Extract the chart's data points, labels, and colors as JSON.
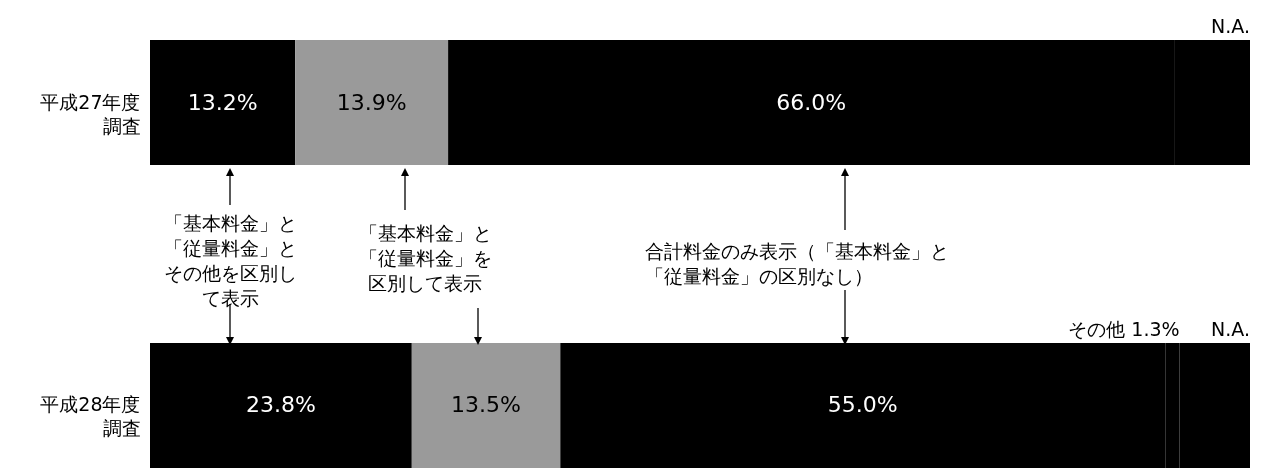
{
  "chart_data": {
    "type": "bar",
    "orientation": "horizontal",
    "stacked": true,
    "categories": [
      "平成27年度調査",
      "平成28年度調査"
    ],
    "xlim": [
      0,
      100
    ],
    "tick_labels": "y",
    "series": [
      {
        "color": "#000000",
        "values": [
          13.2,
          23.8
        ],
        "value_labels": [
          "13.2%",
          "23.8%"
        ]
      },
      {
        "color": "#9a9a9a",
        "values": [
          13.9,
          13.5
        ],
        "value_labels": [
          "13.9%",
          "13.5%"
        ]
      },
      {
        "color": "#000000",
        "values": [
          66.0,
          55.0
        ],
        "value_labels": [
          "66.0%",
          "55.0%"
        ]
      },
      {
        "name": "その他",
        "color": "#000000",
        "values": [
          null,
          1.3
        ],
        "value_labels": [
          null,
          "1.3%"
        ]
      },
      {
        "name": "N.A.",
        "color": "#000000",
        "values": [
          6.9,
          6.4
        ]
      }
    ],
    "annotations": [
      "「基本料金」と「従量料金」とその他を区別して表示",
      "「基本料金」と「従量料金」を区別して表示",
      "合計料金のみ表示（「基本料金」と「従量料金」の区別なし）"
    ]
  }
}
